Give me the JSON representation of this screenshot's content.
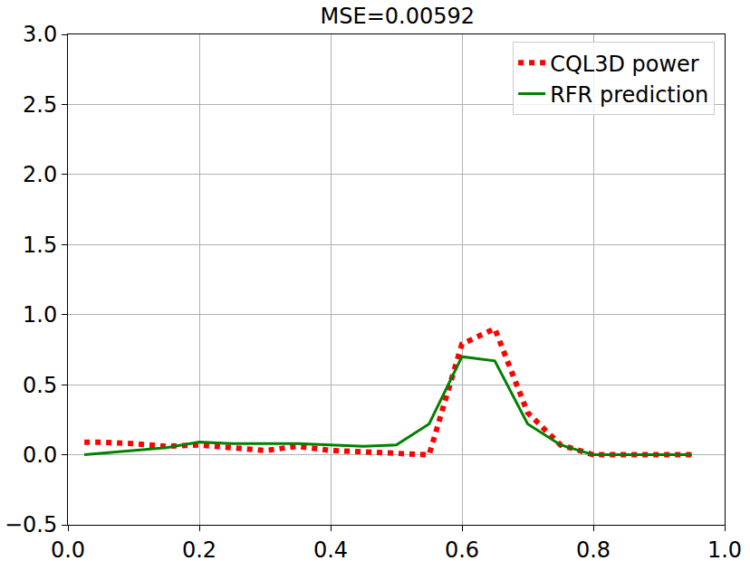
{
  "chart_data": {
    "type": "line",
    "title": "MSE=0.00592",
    "x": [
      0.025,
      0.05,
      0.1,
      0.15,
      0.2,
      0.25,
      0.3,
      0.35,
      0.4,
      0.45,
      0.5,
      0.55,
      0.6,
      0.65,
      0.7,
      0.75,
      0.8,
      0.85,
      0.9,
      0.95
    ],
    "series": [
      {
        "name": "CQL3D power",
        "color": "#ff0000",
        "line_style": "dotted",
        "values": [
          0.09,
          0.09,
          0.08,
          0.06,
          0.07,
          0.05,
          0.03,
          0.06,
          0.03,
          0.02,
          0.01,
          0.0,
          0.79,
          0.9,
          0.3,
          0.07,
          0.0,
          0.0,
          0.0,
          0.0
        ]
      },
      {
        "name": "RFR prediction",
        "color": "#008000",
        "line_style": "solid",
        "values": [
          0.0,
          0.01,
          0.03,
          0.05,
          0.09,
          0.08,
          0.08,
          0.08,
          0.07,
          0.06,
          0.07,
          0.22,
          0.7,
          0.67,
          0.22,
          0.07,
          0.0,
          0.0,
          0.0,
          0.0
        ]
      }
    ],
    "xlim": [
      0,
      1
    ],
    "xticks": [
      {
        "value": 0,
        "label": "0.0"
      },
      0.2,
      0.4,
      0.6,
      0.8,
      {
        "value": 1,
        "label": "1.0"
      }
    ],
    "ylim": [
      -0.5,
      3
    ],
    "yticks": [
      {
        "value": -0.5,
        "label": "−0.5"
      },
      {
        "value": 0,
        "label": "0.0"
      },
      0.5,
      {
        "value": 1,
        "label": "1.0"
      },
      1.5,
      {
        "value": 2,
        "label": "2.0"
      },
      2.5,
      {
        "value": 3,
        "label": "3.0"
      }
    ],
    "grid": true,
    "legend": "upper right"
  }
}
